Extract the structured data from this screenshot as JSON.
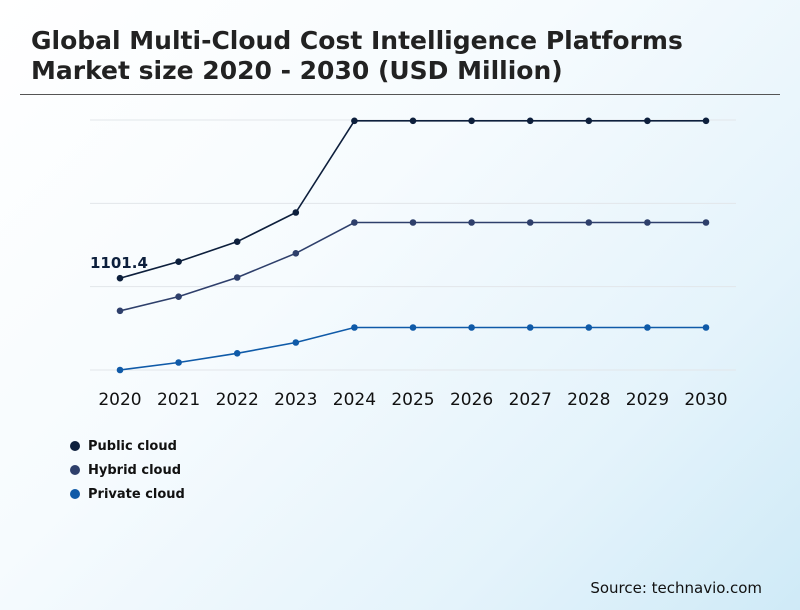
{
  "title": "Global Multi-Cloud Cost Intelligence Platforms Market size 2020 - 2030 (USD Million)",
  "source": "Source: technavio.com",
  "colors": {
    "public": "#0d1f3c",
    "hybrid": "#2e3f6b",
    "private": "#0f5aa8",
    "grid": "#e2e6ea"
  },
  "chart_data": {
    "type": "line",
    "title": "Global Multi-Cloud Cost Intelligence Platforms Market size 2020 - 2030 (USD Million)",
    "xlabel": "",
    "ylabel": "",
    "x": [
      "2020",
      "2021",
      "2022",
      "2023",
      "2024",
      "2025",
      "2026",
      "2027",
      "2028",
      "2029",
      "2030"
    ],
    "ylim": [
      0,
      3000
    ],
    "grid": true,
    "legend_position": "bottom-left",
    "series": [
      {
        "name": "Public cloud",
        "color": "#0d1f3c",
        "values": [
          1101.4,
          1300,
          1540,
          1890,
          2990,
          2990,
          2990,
          2990,
          2990,
          2990,
          2990
        ]
      },
      {
        "name": "Hybrid cloud",
        "color": "#2e3f6b",
        "values": [
          710,
          880,
          1110,
          1400,
          1770,
          1770,
          1770,
          1770,
          1770,
          1770,
          1770
        ]
      },
      {
        "name": "Private cloud",
        "color": "#0f5aa8",
        "values": [
          0,
          90,
          200,
          330,
          510,
          510,
          510,
          510,
          510,
          510,
          510
        ]
      }
    ],
    "annotations": [
      {
        "text": "1101.4",
        "series": "Public cloud",
        "x": "2020"
      }
    ]
  }
}
